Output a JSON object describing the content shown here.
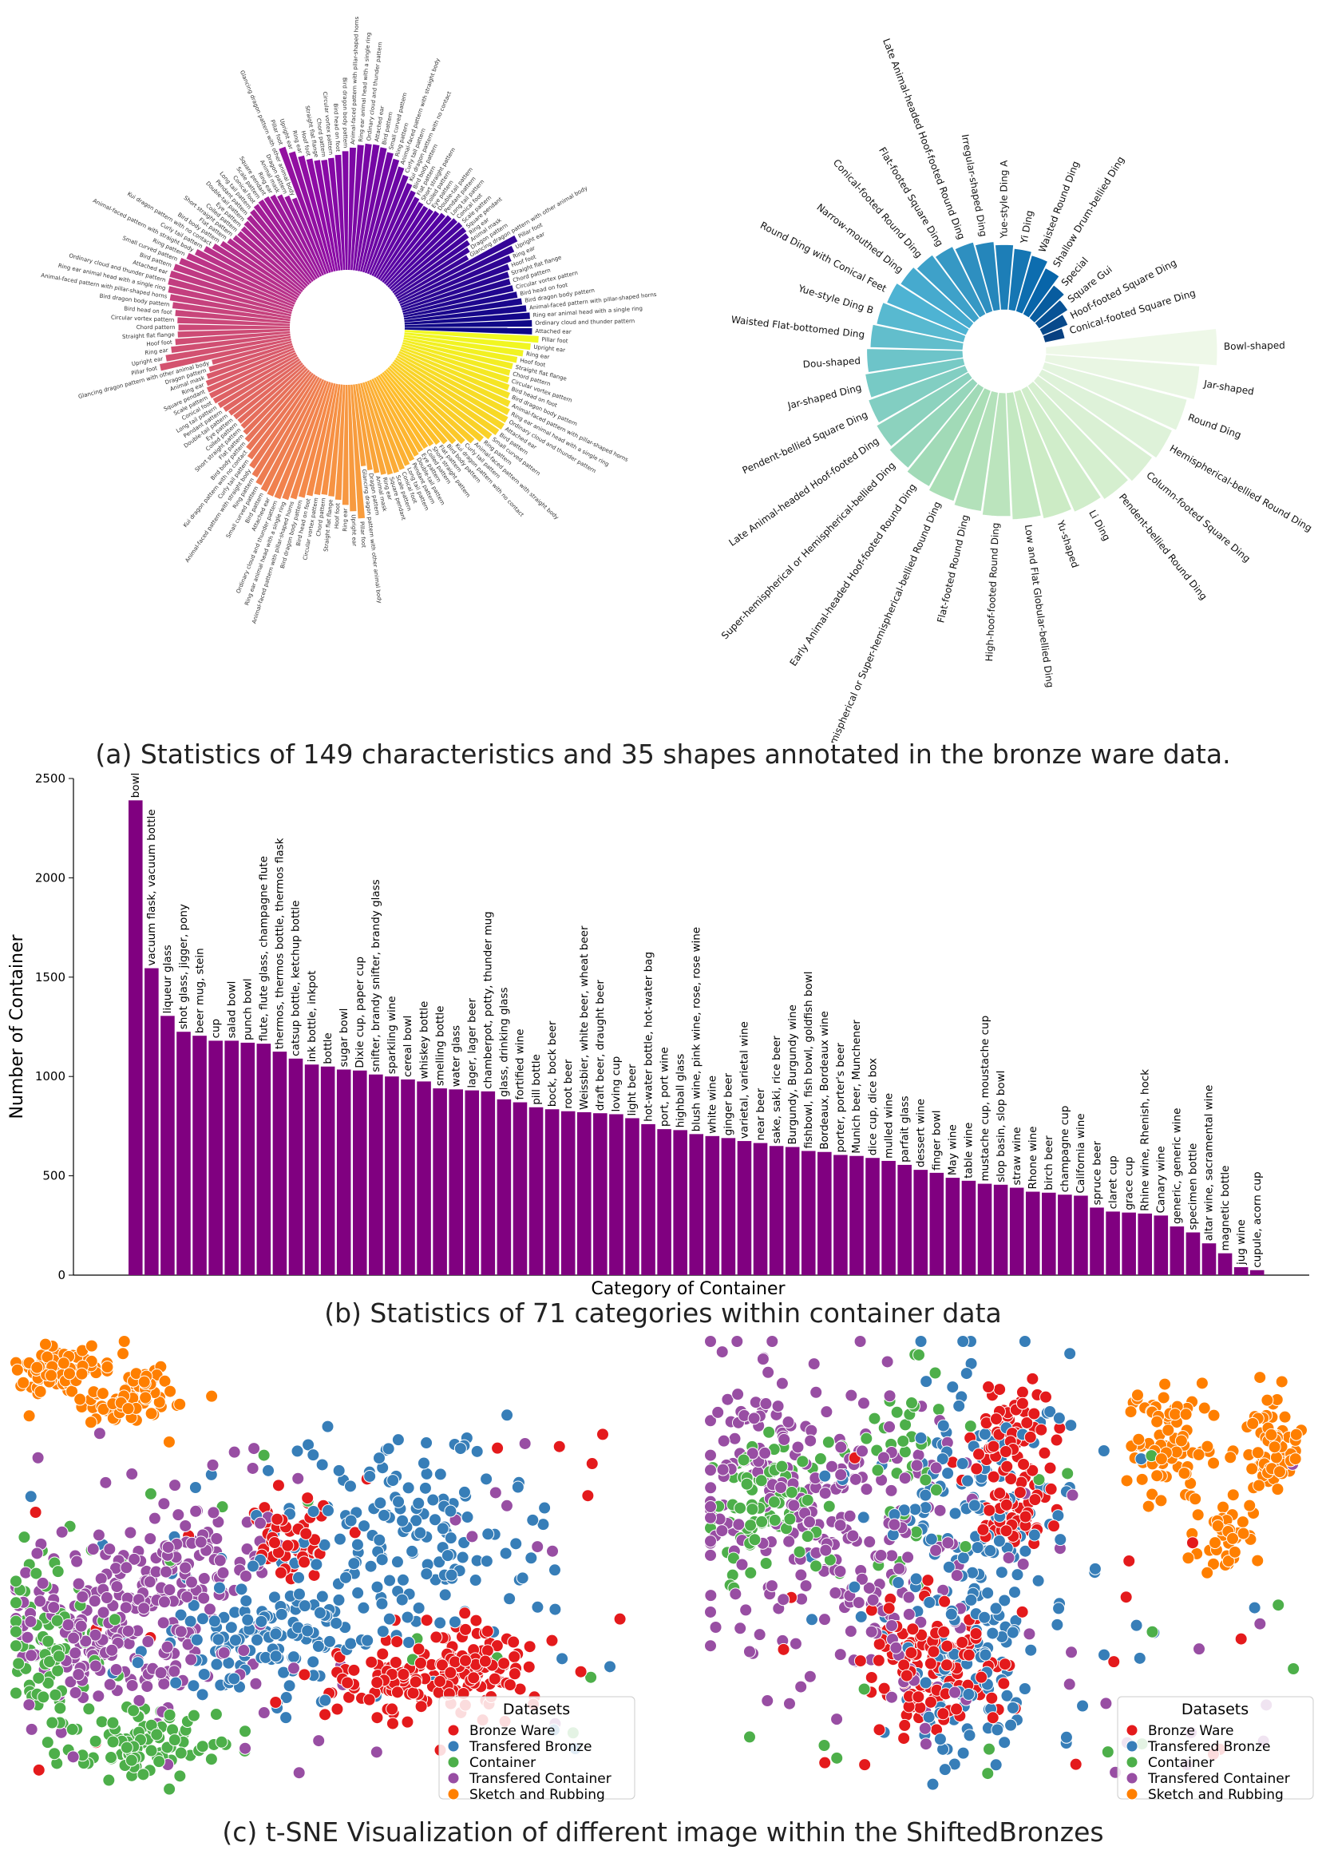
{
  "captions": {
    "a": "(a) Statistics of 149 characteristics and 35 shapes annotated in the bronze ware data.",
    "b": "(b) Statistics of 71 categories within container data",
    "c": "(c) t-SNE Visualization of different image within the ShiftedBronzes"
  },
  "colors": {
    "bar": "#800080",
    "bronze": "#e41a1c",
    "transfered_bronze": "#377eb8",
    "container": "#4daf4a",
    "transfered_container": "#984ea3",
    "sketch": "#ff7f00"
  },
  "chart_data": [
    {
      "id": "characteristics-polar",
      "type": "bar",
      "subtype": "polar-bar",
      "description": "149 characteristics, sorted by count, colored with plasma colormap",
      "categories": [
        "Pillar foot",
        "Upright ear",
        "Ring ear",
        "Hoof foot",
        "Straight flat flange",
        "Chord pattern",
        "Circular vortex pattern",
        "Bird head on foot",
        "Bird dragon body pattern",
        "Animal-faced pattern with pillar-shaped horns",
        "Ring ear animal head with a single ring",
        "Ordinary cloud and thunder pattern",
        "Attached ear",
        "Bird pattern",
        "Small curved pattern",
        "Ring pattern",
        "Animal-faced pattern with straight body",
        "Curly tail pattern",
        "Kui dragon pattern with no contact",
        "Bird body pattern",
        "Flat pattern",
        "Short straight pattern",
        "Coiled pattern",
        "Eye pattern",
        "Double-tail pattern",
        "Pendant pattern",
        "Long tail pattern",
        "Conical foot",
        "Scale pattern",
        "Square pendant",
        "Ring ear",
        "Animal mask",
        "Dragon pattern",
        "Glancing dragon pattern with other animal body"
      ],
      "values": [
        160,
        158,
        156,
        154,
        152,
        150,
        148,
        146,
        144,
        142,
        140,
        138,
        136,
        134,
        132,
        130,
        128,
        126,
        124,
        122,
        120,
        118,
        116,
        114,
        112,
        110,
        108,
        106,
        104,
        102,
        100,
        98,
        96,
        94
      ],
      "labels_left": [
        "Ring ear animal head with angular shape",
        "Elephant trunk-shaped flat foot",
        "Kui dragon pattern curled",
        "Animal-faced head with others or circular",
        "Large bird pattern with closed",
        "Upright ear outward",
        "Curved cutter foot",
        "Separated S-shaped tail long bird pattern",
        "Glancing dragon patterns with hooked body",
        "Hoof foot flared",
        "Mountain pattern",
        "Kui dragon pattern with curved body and arched back",
        "Pantha pattern",
        "Animal-faced band with double body frame",
        "Separated C-shaped tail long bird pattern",
        "Square leaf pattern",
        "Animal-faced pattern with animal horns standing separately",
        "Conical foot",
        "Ring ear animal head with ring",
        "Kui dragon pattern with low head and curled tail",
        "Dragon pattern with curved body",
        "Ring ear animal head with double rings",
        "Animal-faced pattern with horizontal body",
        "Animal-faced pattern",
        "Eye cloud pattern",
        "Steeply angled tail",
        "Animal-faced pattern",
        "Bird dragon pattern",
        "Animal head with vertical single ring",
        "Ring ear animal with tail",
        "Pillar foot in a cylinder"
      ],
      "labels_top": [
        "Ring ear animal head with angular shape",
        "Animal mask with bird",
        "Bird ear pattern",
        "Curved body pattern",
        "Square pattern",
        "Triangle pattern",
        "Pendant double ear",
        "Pillar double-ring foot",
        "Ring ear with vertical ring",
        "Flat cross-shaped pattern",
        "Bird claw-shaped hook pendant",
        "Ring ear animal head with claw",
        "Ordinary stove",
        "Pendant position with pillar foot",
        "Ring ear animal head with vertical ring"
      ]
    },
    {
      "id": "shapes-polar",
      "type": "bar",
      "subtype": "polar-bar",
      "categories": [
        "Bowl-shaped",
        "Jar-shaped",
        "Round Ding",
        "Hemispherical-bellied Round Ding",
        "Column-footed Square Ding",
        "Pendent-bellied Round Ding",
        "Li Ding",
        "Yu-shaped",
        "Low and Flat Globular-bellied Ding",
        "High-hoof-footed Round Ding",
        "Flat-footed Round Ding",
        "Hemispherical or Super-hemispherical-bellied Round Ding",
        "Early Animal-headed Hoof-footed Round Ding",
        "Super-hemispherical or Hemispherical-bellied Ding",
        "Late Animal-headed Hoof-footed Ding",
        "Pendent-bellied Square Ding",
        "Jar-shaped Ding",
        "Dou-shaped",
        "Waisted Flat-bottomed Ding",
        "Yue-style Ding B",
        "Round Ding with Conical Feet",
        "Narrow-mouthed Ding",
        "Conical-footed Round Ding",
        "Flat-footed Square Ding",
        "Late Animal-headed Hoof-footed Round Ding",
        "Irregular-shaped Ding",
        "Yue-style Ding A",
        "Yi Ding",
        "Waisted Round Ding",
        "Shallow Drum-bellied Ding",
        "Special",
        "Square Gui",
        "Hoof-footed Square Ding",
        "Conical-footed Square Ding"
      ],
      "values": [
        100,
        90,
        86,
        84,
        82,
        80,
        78,
        76,
        74,
        72,
        70,
        68,
        66,
        64,
        62,
        60,
        58,
        56,
        54,
        52,
        50,
        48,
        46,
        44,
        42,
        40,
        38,
        36,
        34,
        30,
        24,
        20,
        16,
        12
      ],
      "colormap": "GnBu"
    },
    {
      "id": "container-bar",
      "type": "bar",
      "title": "",
      "xlabel": "Category of Container",
      "ylabel": "Number of Container",
      "ylim": [
        0,
        2500
      ],
      "yticks": [
        "0",
        "500",
        "1000",
        "1500",
        "2000",
        "2500"
      ],
      "categories": [
        "bowl",
        "vacuum flask, vacuum bottle",
        "liqueur glass",
        "shot glass, jigger, pony",
        "beer mug, stein",
        "cup",
        "salad bowl",
        "punch bowl",
        "flute, flute glass, champagne flute",
        "thermos, thermos bottle, thermos flask",
        "catsup bottle, ketchup bottle",
        "ink bottle, inkpot",
        "bottle",
        "sugar bowl",
        "Dixie cup, paper cup",
        "snifter, brandy snifter, brandy glass",
        "sparkling wine",
        "cereal bowl",
        "whiskey bottle",
        "smelling bottle",
        "water glass",
        "lager, lager beer",
        "chamberpot, potty, thunder mug",
        "glass, drinking glass",
        "fortified wine",
        "pill bottle",
        "bock, bock beer",
        "root beer",
        "Weissbier, white beer, wheat beer",
        "draft beer, draught beer",
        "loving cup",
        "light beer",
        "hot-water bottle, hot-water bag",
        "port, port wine",
        "highball glass",
        "blush wine, pink wine, rose, rose wine",
        "white wine",
        "ginger beer",
        "varietal, varietal wine",
        "near beer",
        "sake, saki, rice beer",
        "Burgundy, Burgundy wine",
        "fishbowl, fish bowl, goldfish bowl",
        "Bordeaux, Bordeaux wine",
        "porter, porter's beer",
        "Munich beer, Munchener",
        "dice cup, dice box",
        "mulled wine",
        "parfait glass",
        "dessert wine",
        "finger bowl",
        "May wine",
        "table wine",
        "mustache cup, moustache cup",
        "slop basin, slop bowl",
        "straw wine",
        "Rhone wine",
        "birch beer",
        "champagne cup",
        "California wine",
        "spruce beer",
        "claret cup",
        "grace cup",
        "Rhine wine, Rhenish, hock",
        "Canary wine",
        "generic, generic wine",
        "specimen bottle",
        "altar wine, sacramental wine",
        "magnetic bottle",
        "jug wine",
        "cupule, acorn cup"
      ],
      "values": [
        2390,
        1545,
        1305,
        1225,
        1205,
        1180,
        1180,
        1170,
        1165,
        1125,
        1090,
        1060,
        1050,
        1035,
        1030,
        1010,
        1000,
        985,
        975,
        940,
        935,
        930,
        925,
        885,
        870,
        845,
        835,
        825,
        820,
        815,
        810,
        790,
        760,
        735,
        730,
        710,
        700,
        690,
        675,
        665,
        650,
        645,
        625,
        620,
        605,
        600,
        590,
        575,
        555,
        530,
        515,
        490,
        475,
        460,
        455,
        440,
        420,
        415,
        405,
        400,
        340,
        320,
        315,
        310,
        300,
        245,
        215,
        160,
        110,
        40,
        25
      ]
    },
    {
      "id": "tsne-left",
      "type": "scatter",
      "legend_title": "Datasets",
      "legend": [
        "Bronze Ware",
        "Transfered Bronze",
        "Container",
        "Transfered Container",
        "Sketch and Rubbing"
      ],
      "clusters": [
        {
          "series": 4,
          "cx": 0.07,
          "cy": 0.06,
          "sx": 0.035,
          "sy": 0.025,
          "n": 70
        },
        {
          "series": 4,
          "cx": 0.19,
          "cy": 0.12,
          "sx": 0.04,
          "sy": 0.035,
          "n": 80
        },
        {
          "series": 0,
          "cx": 0.45,
          "cy": 0.42,
          "sx": 0.035,
          "sy": 0.05,
          "n": 50
        },
        {
          "series": 0,
          "cx": 0.73,
          "cy": 0.71,
          "sx": 0.07,
          "sy": 0.05,
          "n": 100
        },
        {
          "series": 0,
          "cx": 0.63,
          "cy": 0.76,
          "sx": 0.08,
          "sy": 0.035,
          "n": 70
        },
        {
          "series": 1,
          "cx": 0.62,
          "cy": 0.45,
          "sx": 0.11,
          "sy": 0.12,
          "n": 180
        },
        {
          "series": 1,
          "cx": 0.39,
          "cy": 0.66,
          "sx": 0.08,
          "sy": 0.07,
          "n": 120
        },
        {
          "series": 2,
          "cx": 0.06,
          "cy": 0.68,
          "sx": 0.045,
          "sy": 0.1,
          "n": 90
        },
        {
          "series": 2,
          "cx": 0.21,
          "cy": 0.88,
          "sx": 0.06,
          "sy": 0.04,
          "n": 90
        },
        {
          "series": 3,
          "cx": 0.18,
          "cy": 0.62,
          "sx": 0.09,
          "sy": 0.09,
          "n": 220
        },
        {
          "series": 3,
          "cx": 0.3,
          "cy": 0.47,
          "sx": 0.06,
          "sy": 0.06,
          "n": 60
        }
      ]
    },
    {
      "id": "tsne-right",
      "type": "scatter",
      "legend_title": "Datasets",
      "legend": [
        "Bronze Ware",
        "Transfered Bronze",
        "Container",
        "Transfered Container",
        "Sketch and Rubbing"
      ],
      "clusters": [
        {
          "series": 4,
          "cx": 0.78,
          "cy": 0.22,
          "sx": 0.04,
          "sy": 0.06,
          "n": 80
        },
        {
          "series": 4,
          "cx": 0.95,
          "cy": 0.22,
          "sx": 0.03,
          "sy": 0.05,
          "n": 60
        },
        {
          "series": 4,
          "cx": 0.87,
          "cy": 0.43,
          "sx": 0.025,
          "sy": 0.05,
          "n": 40
        },
        {
          "series": 0,
          "cx": 0.51,
          "cy": 0.2,
          "sx": 0.035,
          "sy": 0.05,
          "n": 70
        },
        {
          "series": 0,
          "cx": 0.52,
          "cy": 0.37,
          "sx": 0.03,
          "sy": 0.05,
          "n": 50
        },
        {
          "series": 0,
          "cx": 0.38,
          "cy": 0.72,
          "sx": 0.06,
          "sy": 0.07,
          "n": 130
        },
        {
          "series": 1,
          "cx": 0.46,
          "cy": 0.4,
          "sx": 0.09,
          "sy": 0.2,
          "n": 180
        },
        {
          "series": 1,
          "cx": 0.44,
          "cy": 0.75,
          "sx": 0.05,
          "sy": 0.08,
          "n": 70
        },
        {
          "series": 2,
          "cx": 0.1,
          "cy": 0.35,
          "sx": 0.05,
          "sy": 0.08,
          "n": 80
        },
        {
          "series": 2,
          "cx": 0.34,
          "cy": 0.24,
          "sx": 0.05,
          "sy": 0.1,
          "n": 40
        },
        {
          "series": 3,
          "cx": 0.15,
          "cy": 0.35,
          "sx": 0.1,
          "sy": 0.15,
          "n": 200
        },
        {
          "series": 3,
          "cx": 0.33,
          "cy": 0.55,
          "sx": 0.08,
          "sy": 0.15,
          "n": 80
        }
      ]
    }
  ]
}
